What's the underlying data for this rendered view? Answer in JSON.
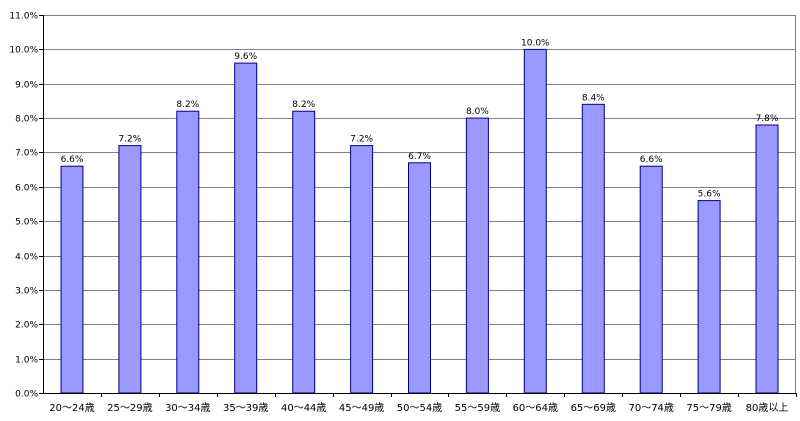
{
  "chart_data": {
    "type": "bar",
    "categories": [
      "20～24歳",
      "25～29歳",
      "30～34歳",
      "35～39歳",
      "40～44歳",
      "45～49歳",
      "50～54歳",
      "55～59歳",
      "60～64歳",
      "65～69歳",
      "70～74歳",
      "75～79歳",
      "80歳以上"
    ],
    "values": [
      6.6,
      7.2,
      8.2,
      9.6,
      8.2,
      7.2,
      6.7,
      8.0,
      10.0,
      8.4,
      6.6,
      5.6,
      7.8
    ],
    "data_labels": [
      "6.6%",
      "7.2%",
      "8.2%",
      "9.6%",
      "8.2%",
      "7.2%",
      "6.7%",
      "8.0%",
      "10.0%",
      "8.4%",
      "6.6%",
      "5.6%",
      "7.8%"
    ],
    "y_ticks": [
      "0.0%",
      "1.0%",
      "2.0%",
      "3.0%",
      "4.0%",
      "5.0%",
      "6.0%",
      "7.0%",
      "8.0%",
      "9.0%",
      "10.0%",
      "11.0%"
    ],
    "title": "",
    "xlabel": "",
    "ylabel": "",
    "ylim": [
      0,
      11
    ],
    "grid": true,
    "legend": "none",
    "bar_color": "#9999ff",
    "bar_edge_color": "#000080",
    "grid_color": "#808080"
  }
}
